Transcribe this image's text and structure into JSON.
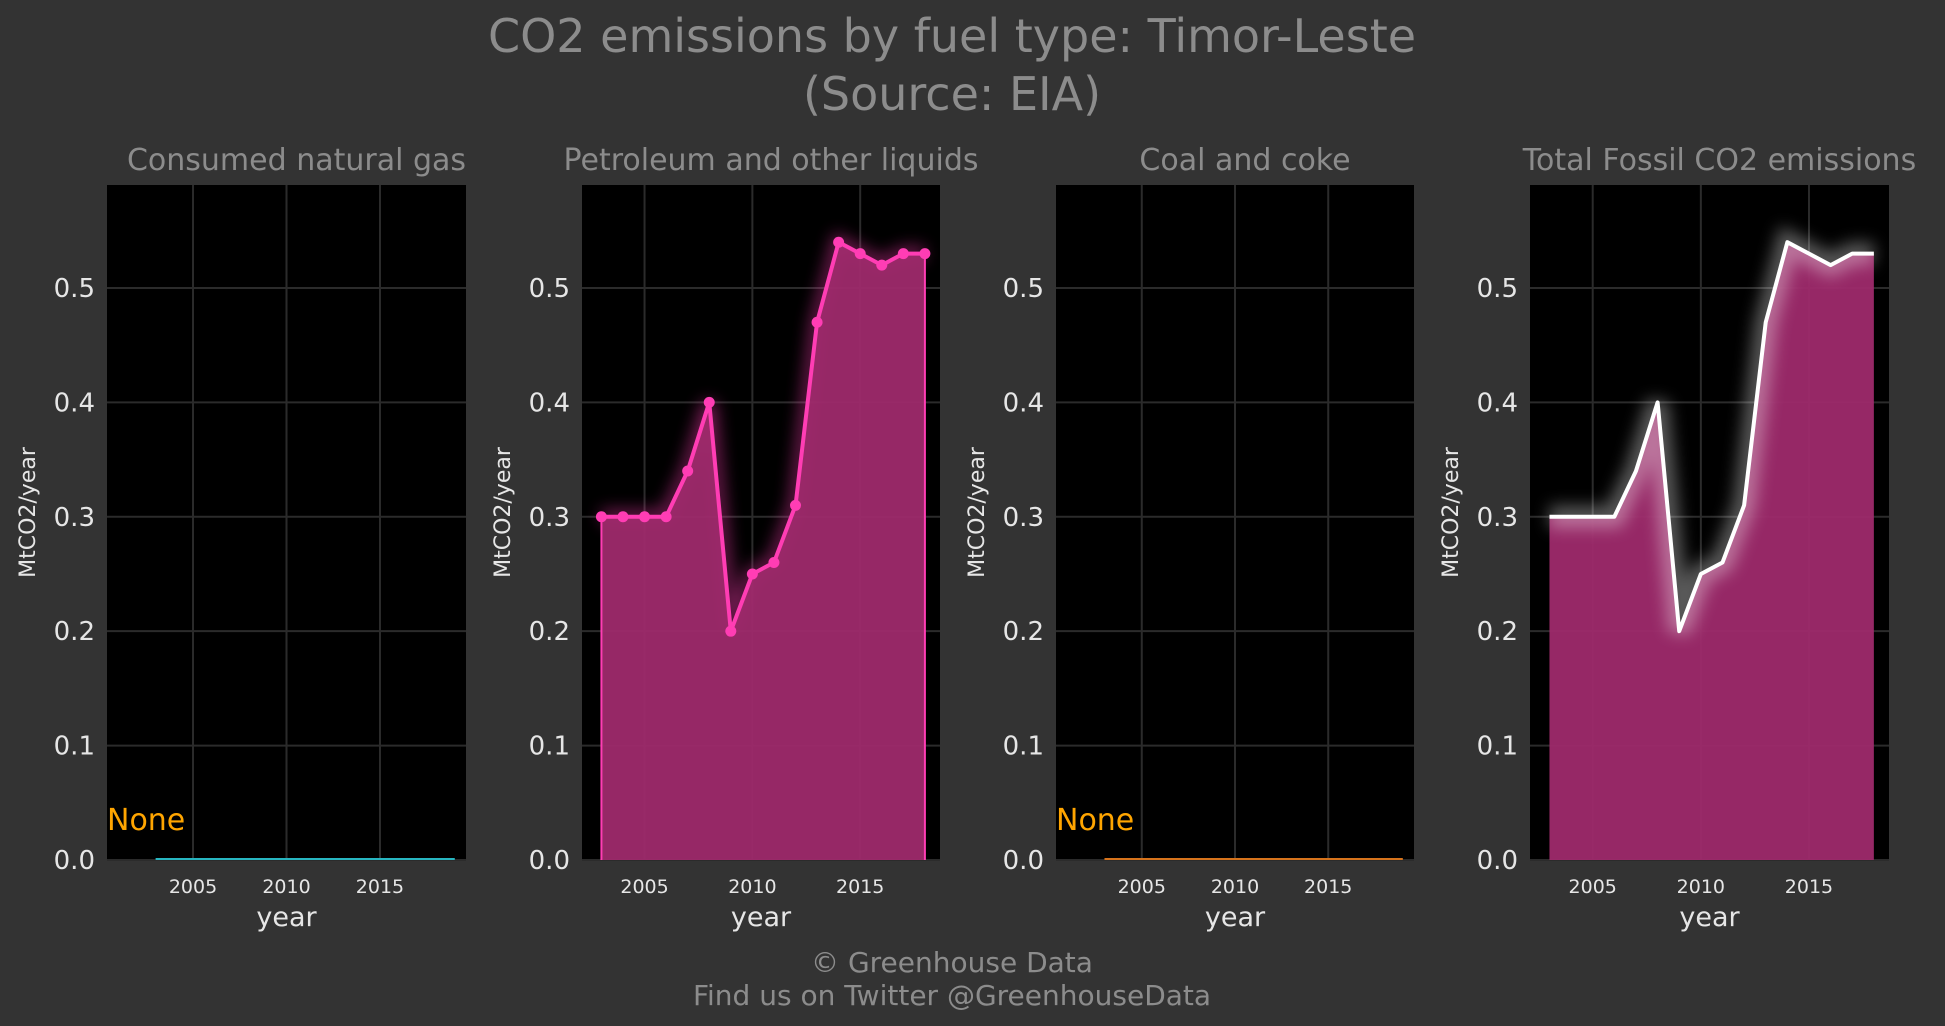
{
  "title_line1": "CO2 emissions by fuel type: Timor-Leste",
  "title_line2": "(Source: EIA)",
  "footer_line1": "© Greenhouse Data",
  "footer_line2": "Find us on Twitter @GreenhouseData",
  "colors": {
    "background": "#333333",
    "panel": "#000000",
    "grid": "#2b2b2b",
    "petroleum": "#ff3db4",
    "area_fill": "#9e2a6c",
    "total_line": "#ffffff",
    "gas_line": "#27b5c0",
    "coal_line": "#d6731c",
    "none_text": "#ffa500"
  },
  "chart_data": [
    {
      "type": "line",
      "title": "Consumed natural gas",
      "xlabel": "year",
      "ylabel": "MtCO2/year",
      "xlim": [
        2000.4,
        2019.6
      ],
      "ylim": [
        0,
        0.59
      ],
      "xticks": [
        2005,
        2010,
        2015
      ],
      "yticks": [
        0.0,
        0.1,
        0.2,
        0.3,
        0.4,
        0.5
      ],
      "grid": true,
      "note": "None",
      "series": [
        {
          "x": [
            2003,
            2019
          ],
          "y": [
            0,
            0
          ],
          "color": "#27b5c0",
          "style": "flat"
        }
      ]
    },
    {
      "type": "area",
      "title": "Petroleum and other liquids",
      "xlabel": "year",
      "ylabel": "MtCO2/year",
      "xlim": [
        2002.1,
        2018.7
      ],
      "ylim": [
        0,
        0.59
      ],
      "xticks": [
        2005,
        2010,
        2015
      ],
      "yticks": [
        0.0,
        0.1,
        0.2,
        0.3,
        0.4,
        0.5
      ],
      "grid": true,
      "series": [
        {
          "x": [
            2003,
            2004,
            2005,
            2006,
            2007,
            2008,
            2009,
            2010,
            2011,
            2012,
            2013,
            2014,
            2015,
            2016,
            2017,
            2018
          ],
          "y": [
            0.3,
            0.3,
            0.3,
            0.3,
            0.34,
            0.4,
            0.2,
            0.25,
            0.26,
            0.31,
            0.47,
            0.54,
            0.53,
            0.52,
            0.53,
            0.53
          ],
          "color": "#ff3db4",
          "style": "points"
        }
      ]
    },
    {
      "type": "line",
      "title": "Coal and coke",
      "xlabel": "year",
      "ylabel": "MtCO2/year",
      "xlim": [
        2000.4,
        2019.6
      ],
      "ylim": [
        0,
        0.59
      ],
      "xticks": [
        2005,
        2010,
        2015
      ],
      "yticks": [
        0.0,
        0.1,
        0.2,
        0.3,
        0.4,
        0.5
      ],
      "grid": true,
      "note": "None",
      "series": [
        {
          "x": [
            2003,
            2019
          ],
          "y": [
            0,
            0
          ],
          "color": "#d6731c",
          "style": "flat"
        }
      ]
    },
    {
      "type": "area",
      "title": "Total Fossil CO2 emissions",
      "xlabel": "year",
      "ylabel": "MtCO2/year",
      "xlim": [
        2002.1,
        2018.7
      ],
      "ylim": [
        0,
        0.59
      ],
      "xticks": [
        2005,
        2010,
        2015
      ],
      "yticks": [
        0.0,
        0.1,
        0.2,
        0.3,
        0.4,
        0.5
      ],
      "grid": true,
      "series": [
        {
          "x": [
            2003,
            2004,
            2005,
            2006,
            2007,
            2008,
            2009,
            2010,
            2011,
            2012,
            2013,
            2014,
            2015,
            2016,
            2017,
            2018
          ],
          "y": [
            0.3,
            0.3,
            0.3,
            0.3,
            0.34,
            0.4,
            0.2,
            0.25,
            0.26,
            0.31,
            0.47,
            0.54,
            0.53,
            0.52,
            0.53,
            0.53
          ],
          "color": "#ffffff",
          "style": "line"
        }
      ]
    }
  ]
}
